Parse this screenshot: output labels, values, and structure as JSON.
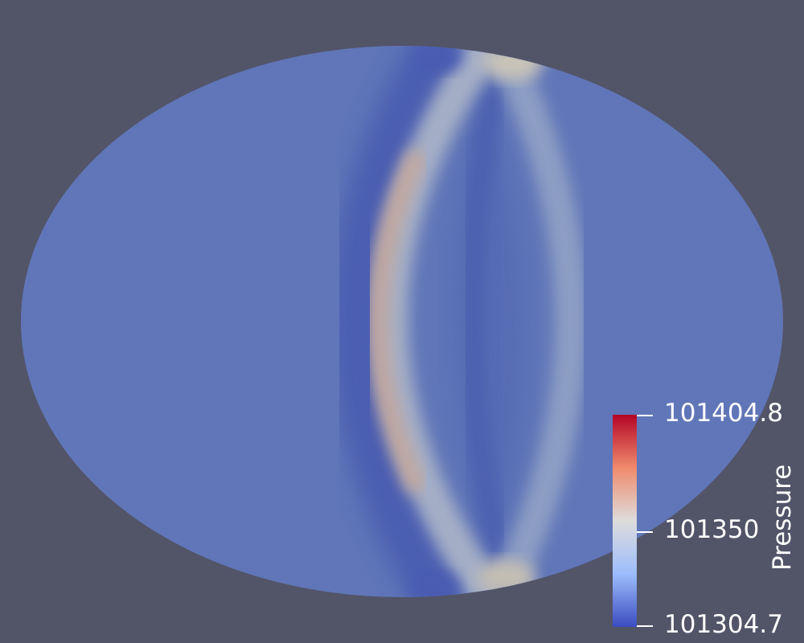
{
  "view": {
    "background": "#525468"
  },
  "field": {
    "variable": "Pressure",
    "base_color": "#6076b8",
    "trough_color": "#4f62b3",
    "crest_color": "#c7a898",
    "band_color": "#9aa8c4"
  },
  "colorbar": {
    "title": "Pressure",
    "colormap": [
      "#b40426",
      "#f08a6c",
      "#dddcdc",
      "#9dbdfc",
      "#3b4cc0"
    ],
    "max_label": "101404.8",
    "mid_label": "101350",
    "min_label": "101304.7",
    "max": 101404.8,
    "mid": 101350,
    "min": 101304.7
  }
}
